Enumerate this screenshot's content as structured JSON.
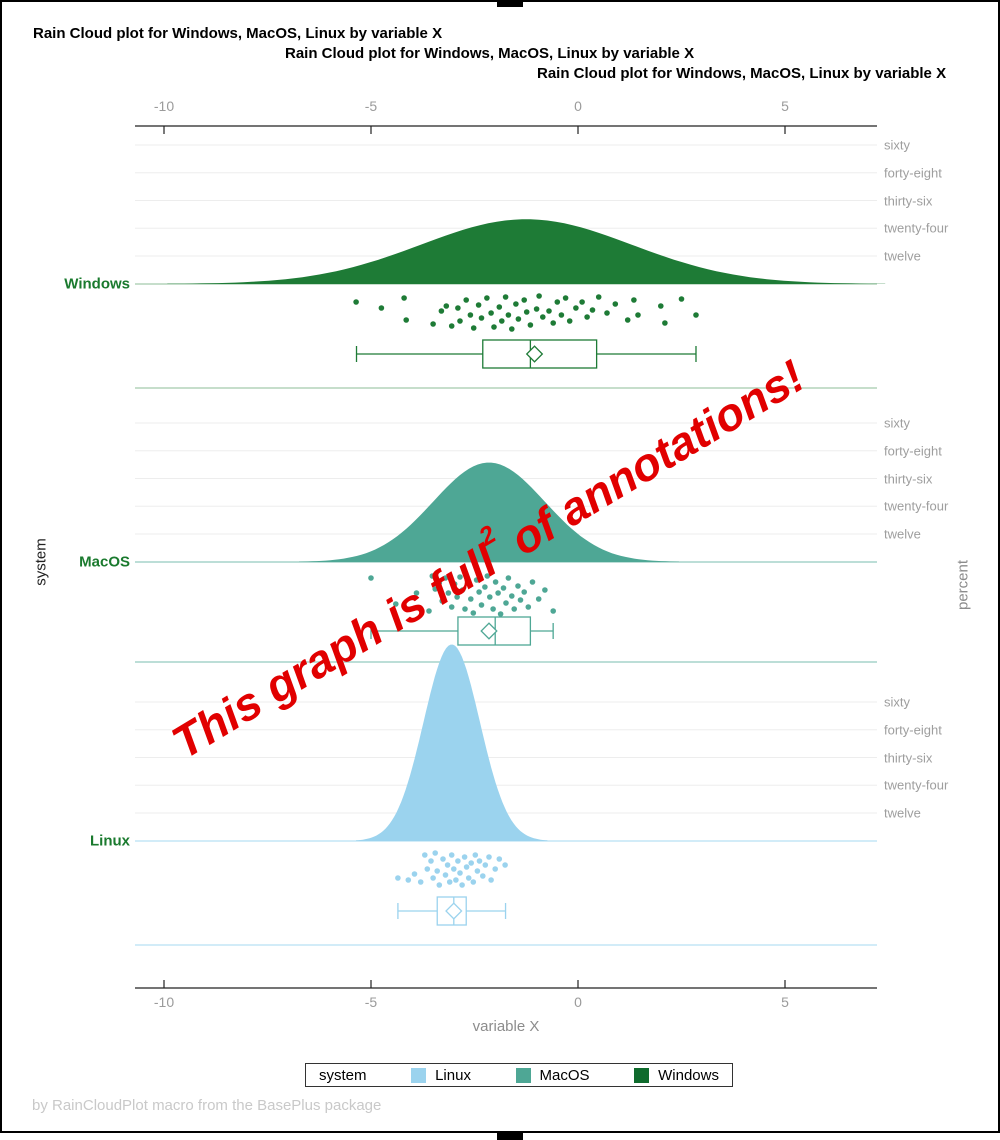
{
  "page": {
    "titles": [
      "Rain Cloud plot for Windows, MacOS, Linux by variable X",
      "Rain Cloud plot for Windows, MacOS, Linux by variable X",
      "Rain Cloud plot for Windows, MacOS, Linux by variable X"
    ],
    "footer": "by RainCloudPlot macro from the BasePlus package"
  },
  "axes": {
    "x_ticks": [
      "-10",
      "-5",
      "0",
      "5"
    ],
    "x_tick_values": [
      -10,
      -5,
      0,
      5
    ],
    "x_label": "variable X",
    "y_left_label": "system",
    "y_right_label": "percent",
    "percent_labels": [
      "sixty",
      "forty-eight",
      "thirty-six",
      "twenty-four",
      "twelve"
    ]
  },
  "legend": {
    "title": "system",
    "items": [
      {
        "label": "Linux",
        "color": "#9bd3ee"
      },
      {
        "label": "MacOS",
        "color": "#4ea795"
      },
      {
        "label": "Windows",
        "color": "#0f6b2d"
      }
    ]
  },
  "annotation": {
    "text_main": "This graph is full",
    "text_sup": "2",
    "text_tail": " of annotations!",
    "color": "#e10000"
  },
  "colors": {
    "group_label_green": "#1a7a2e",
    "gridline": "#ededed",
    "axis_line": "#222222",
    "tick_text": "#9b9b9b"
  },
  "chart_data": {
    "type": "raincloud",
    "title": "Rain Cloud plot for Windows, MacOS, Linux by variable X",
    "xlabel": "variable X",
    "ylabel_left": "system",
    "ylabel_right": "percent",
    "x_ticks": [
      -10,
      -5,
      0,
      5
    ],
    "x_range_visible": [
      -10.7,
      7.2
    ],
    "percent_gridline_values": [
      60,
      48,
      36,
      24,
      12
    ],
    "groups": [
      {
        "name": "Windows",
        "color": "#1e7b36",
        "light_color": "#b3d4ba",
        "density": {
          "mean": -1.25,
          "sd": 2.55,
          "peak_percent": 28
        },
        "box": {
          "min": -5.35,
          "q1": -2.3,
          "median": -1.15,
          "q3": 0.45,
          "max": 2.85,
          "mean": -1.05
        },
        "points": [
          [
            -5.36,
            18
          ],
          [
            -4.75,
            24
          ],
          [
            -4.2,
            14
          ],
          [
            -4.15,
            36
          ],
          [
            -3.5,
            40
          ],
          [
            -3.3,
            27
          ],
          [
            -3.18,
            22
          ],
          [
            -3.05,
            42
          ],
          [
            -2.9,
            24
          ],
          [
            -2.85,
            37
          ],
          [
            -2.7,
            16
          ],
          [
            -2.6,
            31
          ],
          [
            -2.52,
            44
          ],
          [
            -2.4,
            21
          ],
          [
            -2.33,
            34
          ],
          [
            -2.2,
            14
          ],
          [
            -2.1,
            29
          ],
          [
            -2.03,
            43
          ],
          [
            -1.9,
            23
          ],
          [
            -1.84,
            37
          ],
          [
            -1.75,
            13
          ],
          [
            -1.68,
            31
          ],
          [
            -1.6,
            45
          ],
          [
            -1.5,
            20
          ],
          [
            -1.44,
            35
          ],
          [
            -1.3,
            16
          ],
          [
            -1.24,
            28
          ],
          [
            -1.15,
            41
          ],
          [
            -1.0,
            25
          ],
          [
            -0.94,
            12
          ],
          [
            -0.85,
            33
          ],
          [
            -0.7,
            27
          ],
          [
            -0.6,
            39
          ],
          [
            -0.5,
            18
          ],
          [
            -0.4,
            31
          ],
          [
            -0.3,
            14
          ],
          [
            -0.2,
            37
          ],
          [
            -0.05,
            24
          ],
          [
            0.1,
            18
          ],
          [
            0.22,
            33
          ],
          [
            0.35,
            26
          ],
          [
            0.5,
            13
          ],
          [
            0.7,
            29
          ],
          [
            0.9,
            20
          ],
          [
            1.2,
            36
          ],
          [
            1.35,
            16
          ],
          [
            1.45,
            31
          ],
          [
            2.0,
            22
          ],
          [
            2.1,
            39
          ],
          [
            2.5,
            15
          ],
          [
            2.85,
            31
          ]
        ]
      },
      {
        "name": "MacOS",
        "color": "#4ea795",
        "light_color": "#a6d4ca",
        "density": {
          "mean": -2.15,
          "sd": 1.35,
          "peak_percent": 43
        },
        "box": {
          "min": -5.0,
          "q1": -2.9,
          "median": -2.0,
          "q3": -1.15,
          "max": -0.6,
          "mean": -2.15
        },
        "points": [
          [
            -5.0,
            16
          ],
          [
            -4.4,
            42
          ],
          [
            -3.9,
            31
          ],
          [
            -3.6,
            49
          ],
          [
            -3.52,
            14
          ],
          [
            -3.45,
            27
          ],
          [
            -3.35,
            21
          ],
          [
            -3.28,
            39
          ],
          [
            -3.2,
            16
          ],
          [
            -3.13,
            31
          ],
          [
            -3.05,
            45
          ],
          [
            -2.98,
            22
          ],
          [
            -2.92,
            35
          ],
          [
            -2.85,
            15
          ],
          [
            -2.79,
            28
          ],
          [
            -2.73,
            47
          ],
          [
            -2.65,
            20
          ],
          [
            -2.59,
            37
          ],
          [
            -2.53,
            51
          ],
          [
            -2.45,
            18
          ],
          [
            -2.39,
            30
          ],
          [
            -2.33,
            43
          ],
          [
            -2.25,
            25
          ],
          [
            -2.19,
            14
          ],
          [
            -2.13,
            35
          ],
          [
            -2.05,
            47
          ],
          [
            -1.99,
            20
          ],
          [
            -1.93,
            31
          ],
          [
            -1.87,
            52
          ],
          [
            -1.8,
            26
          ],
          [
            -1.74,
            41
          ],
          [
            -1.68,
            16
          ],
          [
            -1.6,
            34
          ],
          [
            -1.54,
            47
          ],
          [
            -1.45,
            24
          ],
          [
            -1.39,
            38
          ],
          [
            -1.3,
            30
          ],
          [
            -1.2,
            45
          ],
          [
            -1.1,
            20
          ],
          [
            -0.95,
            37
          ],
          [
            -0.8,
            28
          ],
          [
            -0.6,
            49
          ]
        ]
      },
      {
        "name": "Linux",
        "color": "#9bd3ee",
        "light_color": "#c3e5f6",
        "density": {
          "mean": -3.05,
          "sd": 0.68,
          "peak_percent": 85
        },
        "box": {
          "min": -4.35,
          "q1": -3.4,
          "median": -3.0,
          "q3": -2.7,
          "max": -1.75,
          "mean": -3.0
        },
        "points": [
          [
            -4.35,
            37
          ],
          [
            -4.1,
            39
          ],
          [
            -3.95,
            33
          ],
          [
            -3.8,
            41
          ],
          [
            -3.7,
            14
          ],
          [
            -3.64,
            28
          ],
          [
            -3.55,
            20
          ],
          [
            -3.5,
            37
          ],
          [
            -3.45,
            12
          ],
          [
            -3.4,
            30
          ],
          [
            -3.35,
            44
          ],
          [
            -3.26,
            18
          ],
          [
            -3.2,
            34
          ],
          [
            -3.15,
            24
          ],
          [
            -3.1,
            41
          ],
          [
            -3.05,
            14
          ],
          [
            -3.0,
            28
          ],
          [
            -2.95,
            39
          ],
          [
            -2.9,
            20
          ],
          [
            -2.85,
            32
          ],
          [
            -2.8,
            44
          ],
          [
            -2.74,
            16
          ],
          [
            -2.69,
            26
          ],
          [
            -2.64,
            37
          ],
          [
            -2.58,
            22
          ],
          [
            -2.53,
            41
          ],
          [
            -2.48,
            14
          ],
          [
            -2.43,
            30
          ],
          [
            -2.38,
            20
          ],
          [
            -2.3,
            35
          ],
          [
            -2.24,
            24
          ],
          [
            -2.15,
            16
          ],
          [
            -2.1,
            39
          ],
          [
            -2.0,
            28
          ],
          [
            -1.9,
            18
          ],
          [
            -1.76,
            24
          ]
        ]
      }
    ],
    "legend_position": "bottom",
    "grid": true
  }
}
